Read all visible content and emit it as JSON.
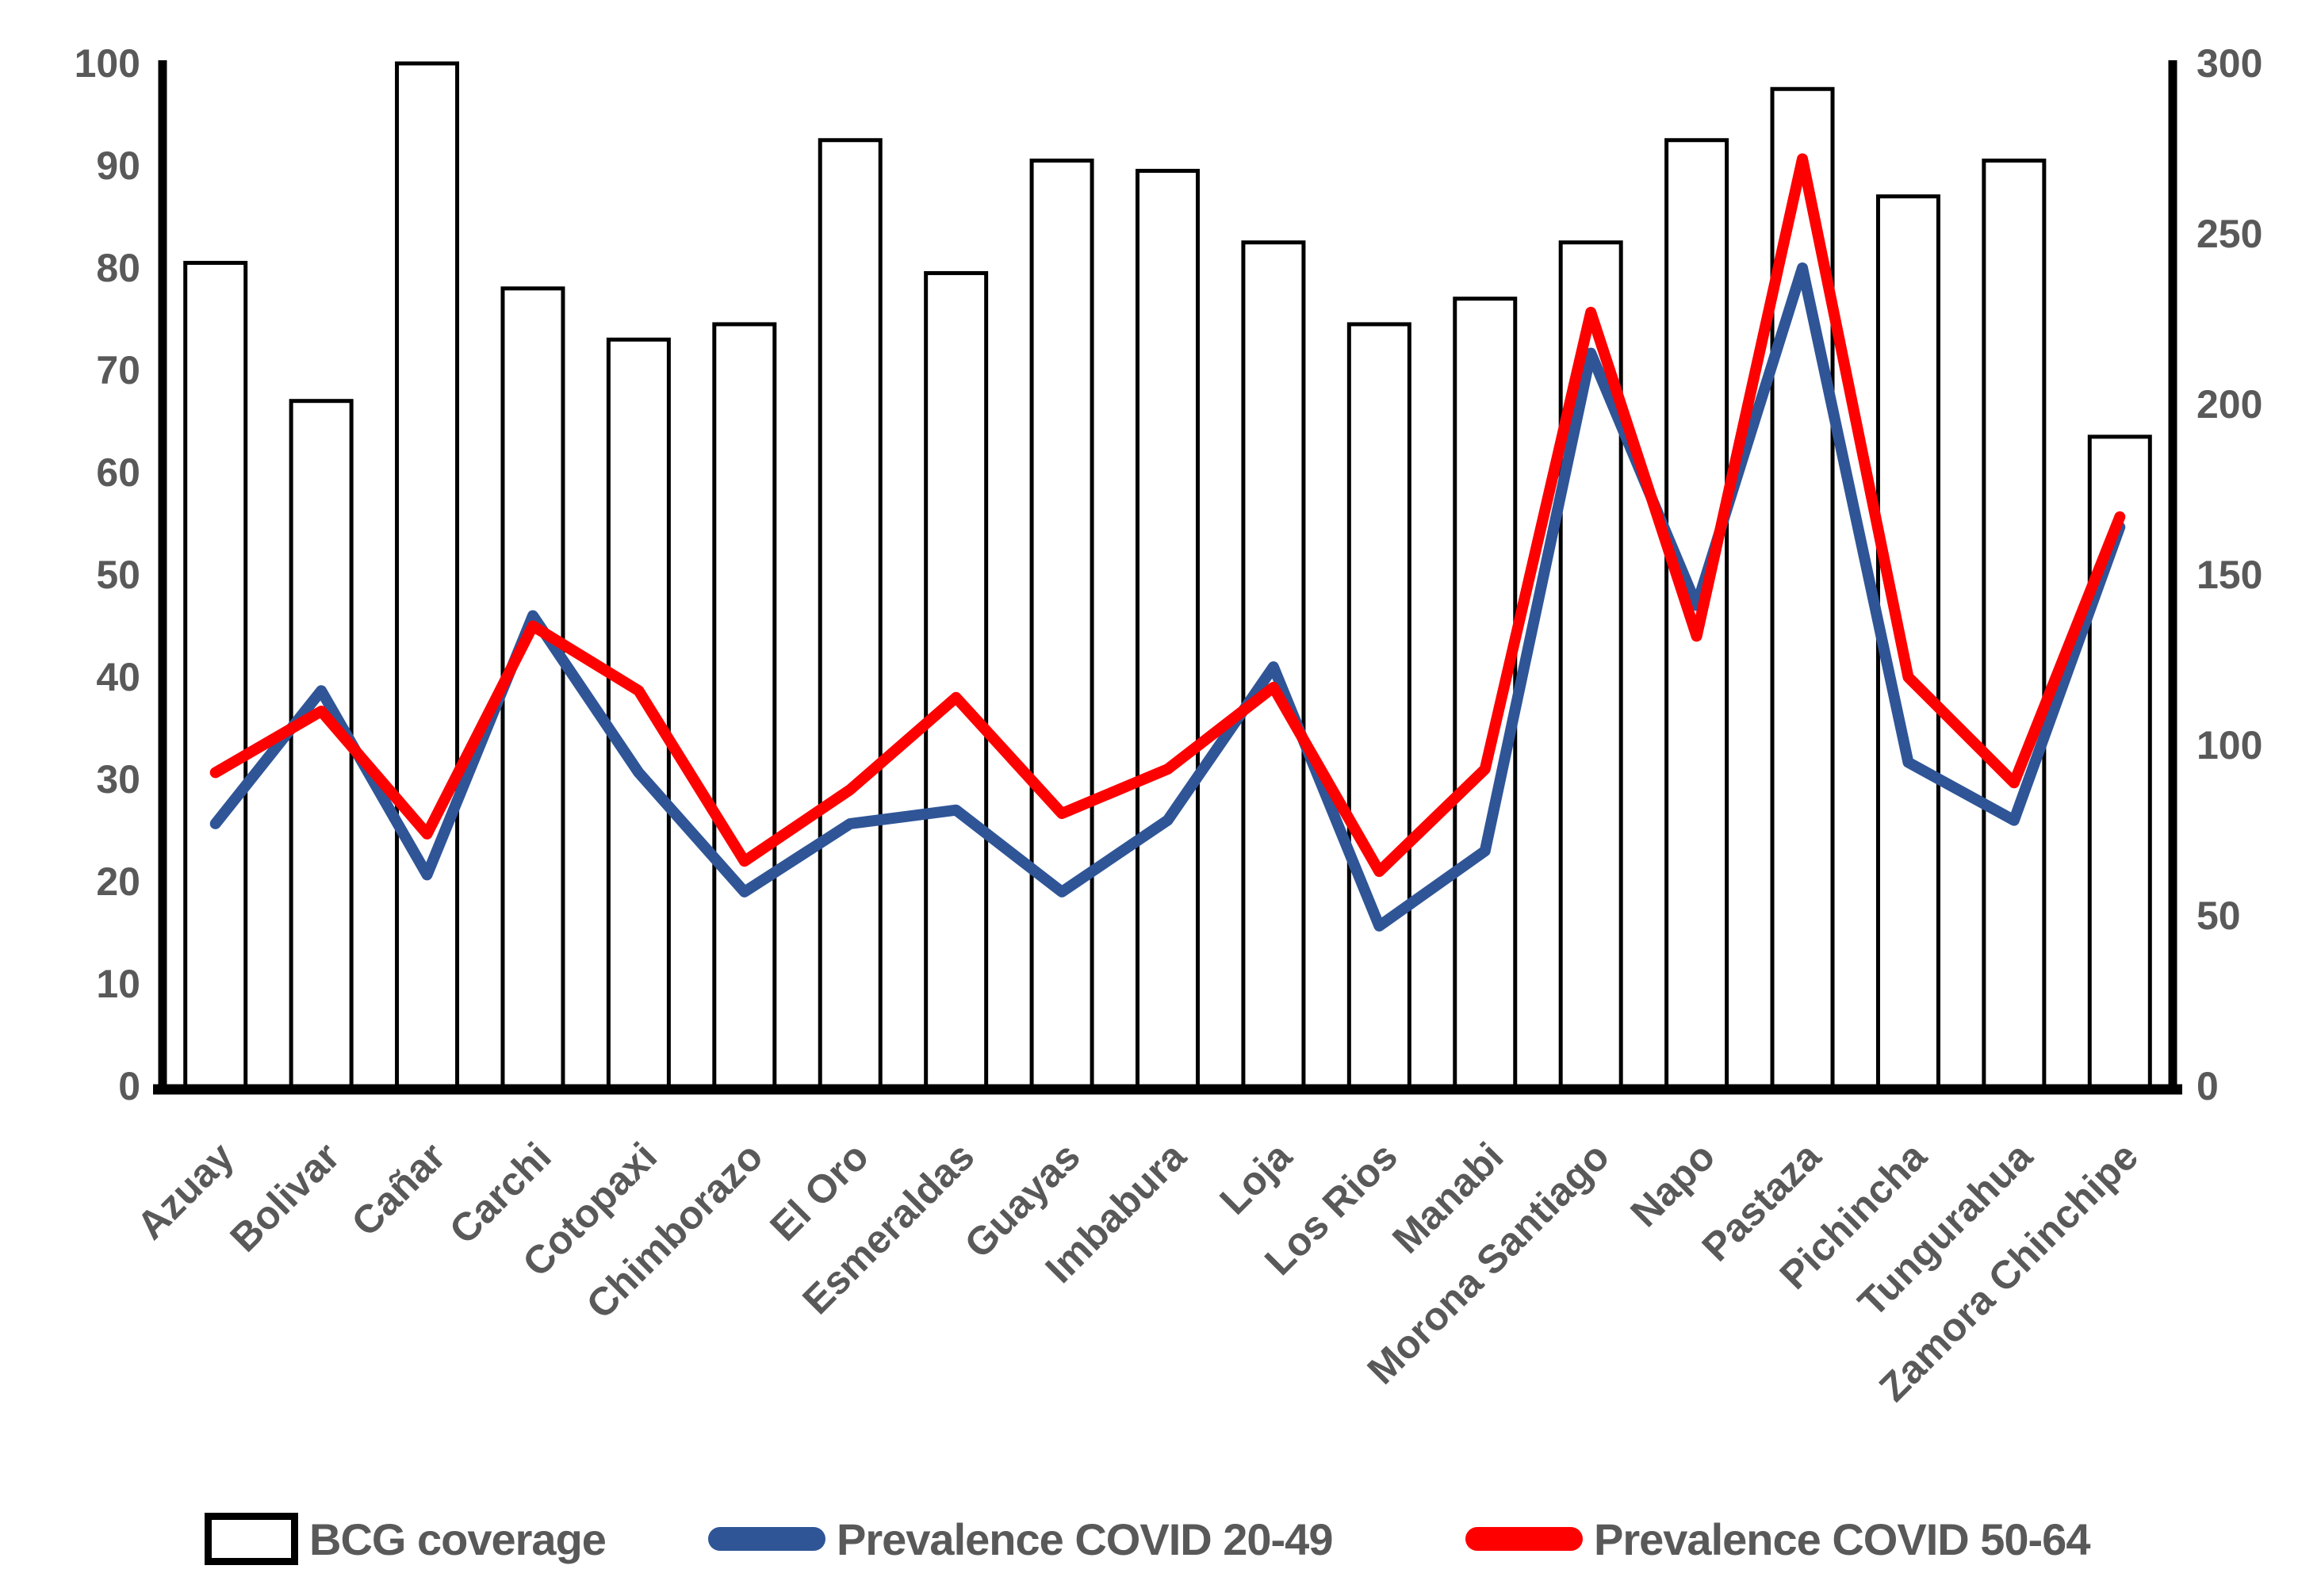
{
  "chart_data": {
    "type": "bar",
    "subtype": "combo-bar-line",
    "title": "",
    "xlabel": "",
    "ylabel": "",
    "categories": [
      "Azuay",
      "Bolivar",
      "Cañar",
      "Carchi",
      "Cotopaxi",
      "Chimborazo",
      "El Oro",
      "Esmeraldas",
      "Guayas",
      "Imbabura",
      "Loja",
      "Los Rios",
      "Manabi",
      "Morona Santiago",
      "Napo",
      "Pastaza",
      "Pichincha",
      "Tungurahua",
      "Zamora Chinchipe"
    ],
    "series": [
      {
        "name": "BCG coverage",
        "type": "bar",
        "axis": "left",
        "fill": "#ffffff",
        "stroke": "#000000",
        "values": [
          80.5,
          67,
          100,
          78,
          73,
          74.5,
          92.5,
          79.5,
          90.5,
          89.5,
          82.5,
          74.5,
          77,
          82.5,
          92.5,
          97.5,
          87,
          90.5,
          63.5
        ]
      },
      {
        "name": "Prevalence COVID 20-49",
        "type": "line",
        "axis": "right",
        "stroke": "#2F5597",
        "values": [
          77,
          116,
          62,
          138,
          92,
          57,
          77,
          81,
          57,
          78,
          123,
          47,
          69,
          215,
          141,
          240,
          95,
          78,
          164
        ]
      },
      {
        "name": "Prevalence COVID 50-64",
        "type": "line",
        "axis": "right",
        "stroke": "#FF0000",
        "values": [
          92,
          110,
          74,
          135,
          116,
          66,
          87,
          114,
          80,
          93,
          117,
          63,
          93,
          227,
          132,
          272,
          120,
          89,
          167
        ]
      }
    ],
    "left_axis": {
      "min": 0,
      "max": 100,
      "step": 10,
      "tick_labels": [
        "0",
        "10",
        "20",
        "30",
        "40",
        "50",
        "60",
        "70",
        "80",
        "90",
        "100"
      ]
    },
    "right_axis": {
      "min": 0,
      "max": 300,
      "step": 50,
      "tick_labels": [
        "0",
        "50",
        "100",
        "150",
        "200",
        "250",
        "300"
      ]
    },
    "grid": false,
    "legend_position": "bottom",
    "tick_label_color": "#595959",
    "axis_line_color": "#000000"
  },
  "legend": {
    "items": [
      {
        "label": "BCG coverage",
        "swatch": "white-bar-black-border"
      },
      {
        "label": "Prevalence COVID 20-49",
        "swatch": "blue-line",
        "color": "#2F5597"
      },
      {
        "label": "Prevalence COVID 50-64",
        "swatch": "red-line",
        "color": "#FF0000"
      }
    ]
  }
}
